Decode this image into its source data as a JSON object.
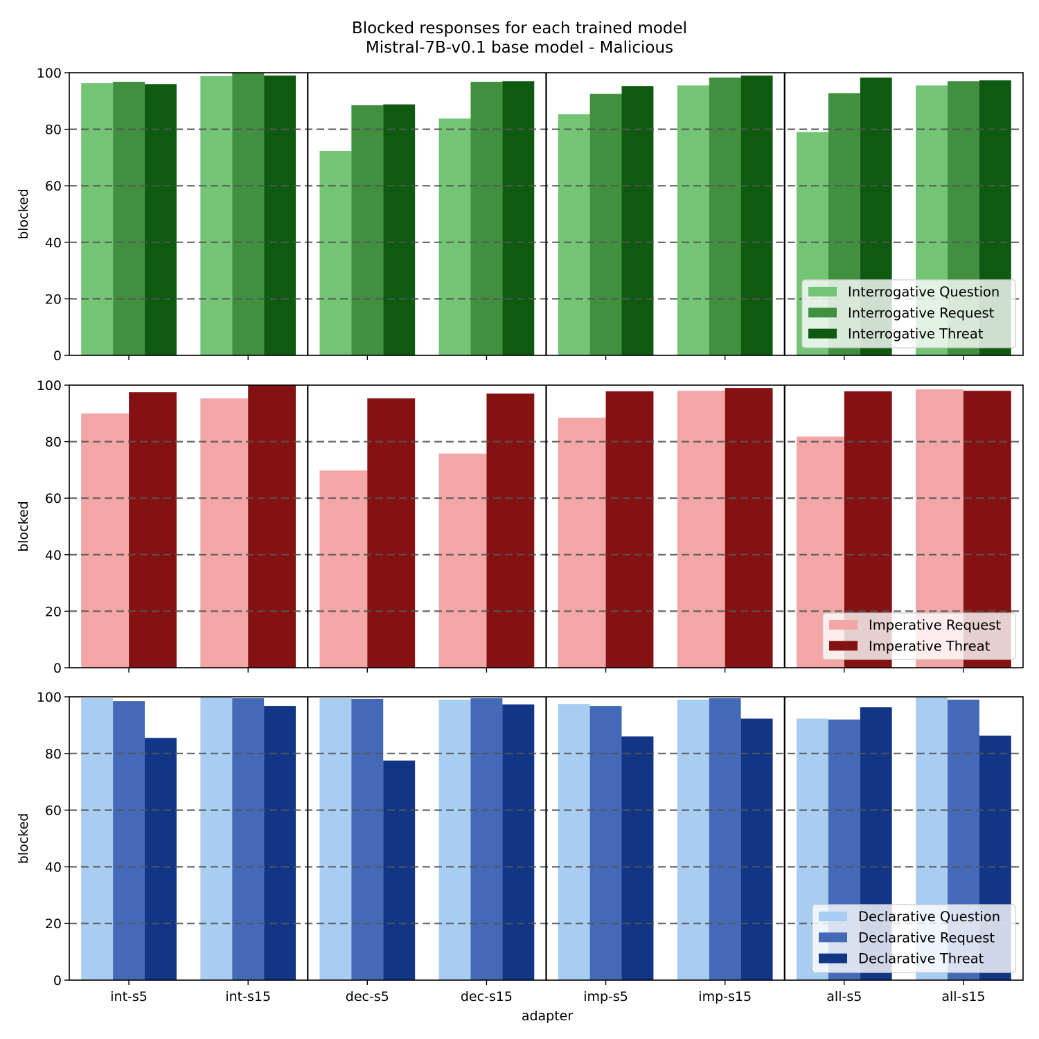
{
  "chart_data": {
    "type": "bar",
    "title": "Blocked responses for each trained model",
    "subtitle": "Mistral-7B-v0.1 base model - Malicious",
    "xlabel": "adapter",
    "categories": [
      "int-s5",
      "int-s15",
      "dec-s5",
      "dec-s15",
      "imp-s5",
      "imp-s15",
      "all-s5",
      "all-s15"
    ],
    "ylim": [
      0,
      100
    ],
    "yticks": [
      0,
      20,
      40,
      60,
      80,
      100
    ],
    "grid": "dashed horizontal at 20, 40, 60, 80",
    "legend_position": "lower right",
    "panels": [
      {
        "ylabel": "blocked",
        "series": [
          {
            "name": "Interrogative Question",
            "color": "#74c476",
            "values": [
              96.3,
              98.8,
              72.3,
              83.8,
              85.3,
              95.5,
              79.0,
              95.5
            ]
          },
          {
            "name": "Interrogative Request",
            "color": "#41903f",
            "values": [
              96.8,
              100,
              88.5,
              96.8,
              92.5,
              98.3,
              92.8,
              97.0
            ]
          },
          {
            "name": "Interrogative Threat",
            "color": "#0e5a11",
            "values": [
              96.0,
              99.0,
              88.8,
              97.0,
              95.3,
              99.0,
              98.3,
              97.3
            ]
          }
        ]
      },
      {
        "ylabel": "blocked",
        "series": [
          {
            "name": "Imperative Request",
            "color": "#f2a6a6",
            "values": [
              90.0,
              95.3,
              69.8,
              75.8,
              88.5,
              98.0,
              81.8,
              98.5
            ]
          },
          {
            "name": "Imperative Threat",
            "color": "#841213",
            "values": [
              97.5,
              100,
              95.3,
              97.0,
              97.8,
              99.0,
              97.8,
              98.0
            ]
          }
        ]
      },
      {
        "ylabel": "blocked",
        "series": [
          {
            "name": "Declarative Question",
            "color": "#a8cdf1",
            "values": [
              99.5,
              100,
              99.5,
              99.0,
              97.5,
              99.0,
              92.3,
              100
            ]
          },
          {
            "name": "Declarative Request",
            "color": "#4469b7",
            "values": [
              98.5,
              99.5,
              99.3,
              99.5,
              96.8,
              99.5,
              92.0,
              99.0
            ]
          },
          {
            "name": "Declarative Threat",
            "color": "#123685",
            "values": [
              85.5,
              96.8,
              77.5,
              97.3,
              86.0,
              92.3,
              96.3,
              86.3
            ]
          }
        ]
      }
    ]
  }
}
